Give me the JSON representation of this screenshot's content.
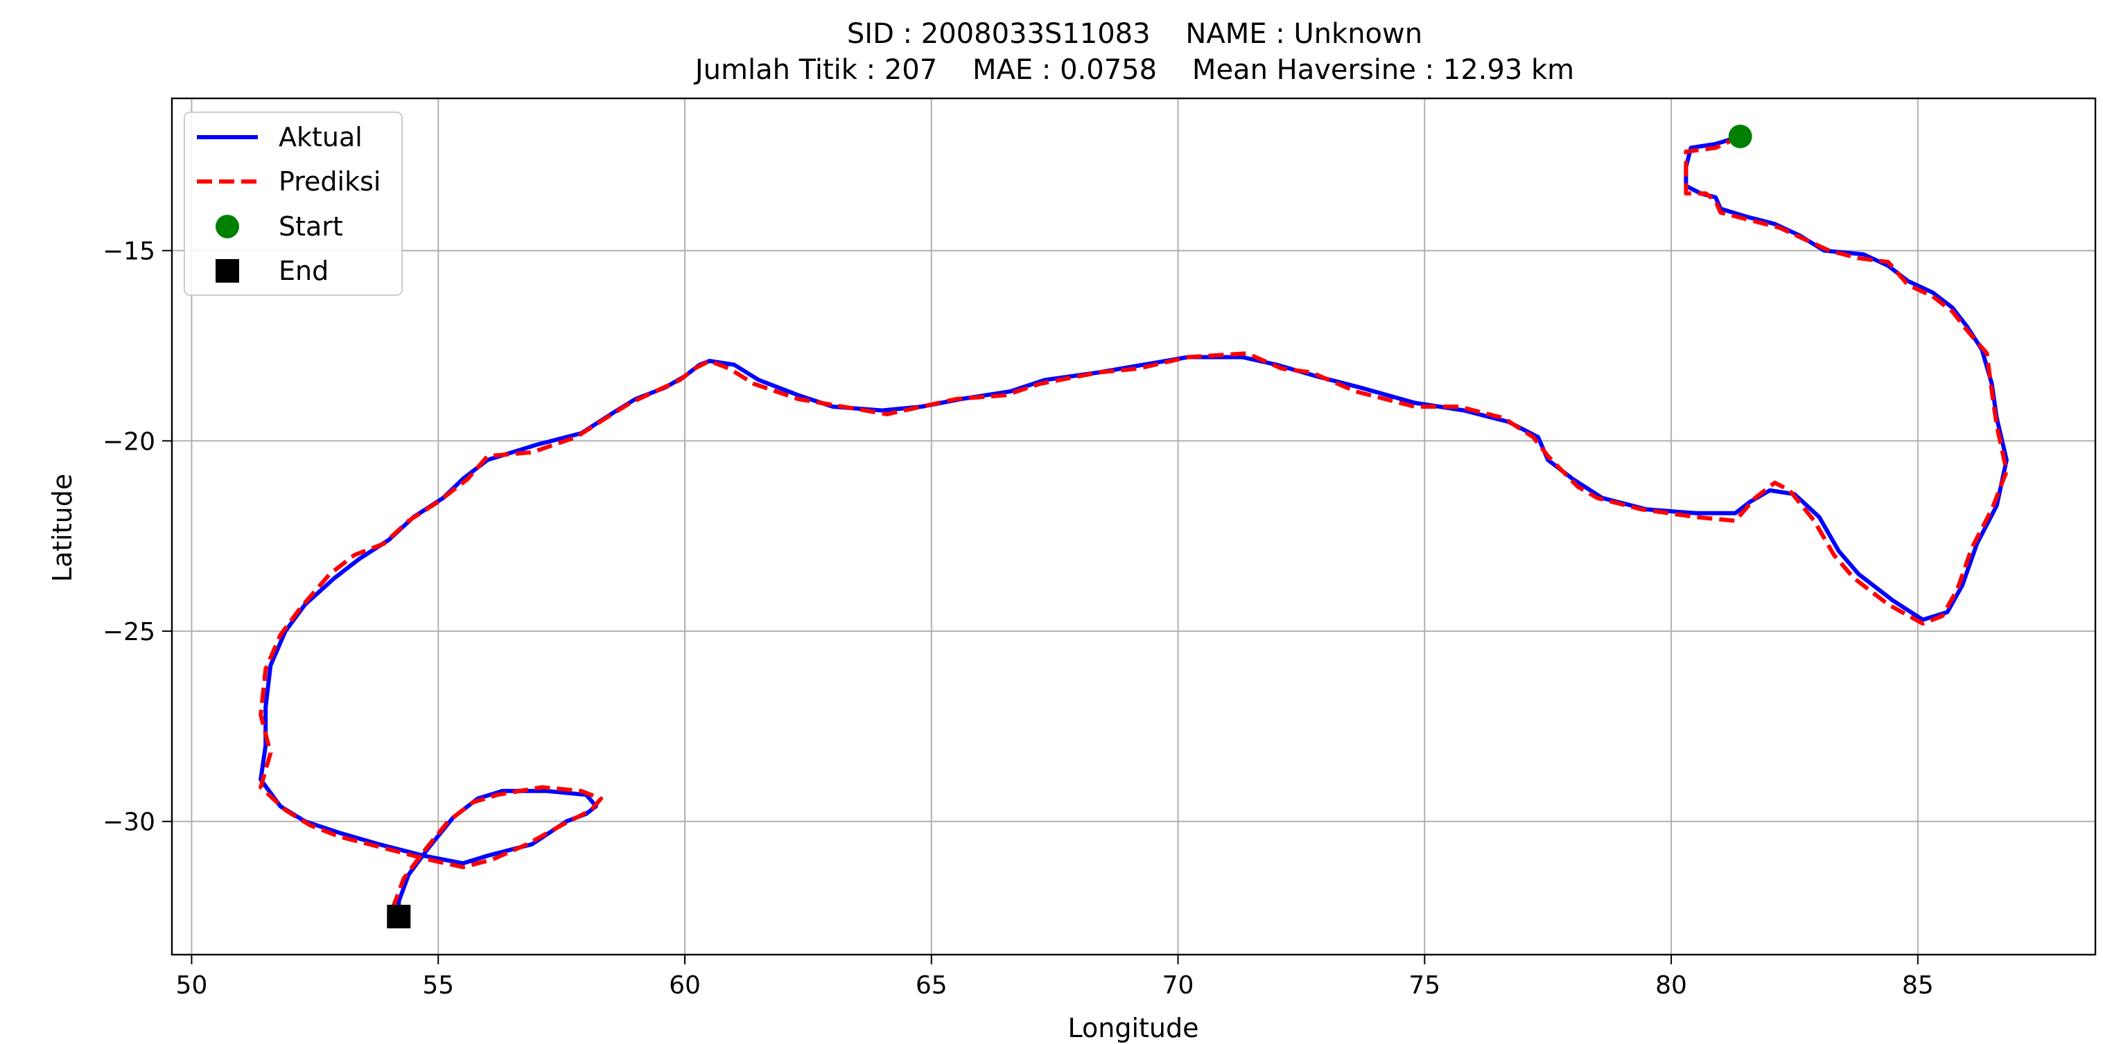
{
  "chart_data": {
    "type": "line",
    "title_line1": "SID : 2008033S11083    NAME : Unknown",
    "title_line2": "Jumlah Titik : 207    MAE : 0.0758    Mean Haversine : 12.93 km",
    "xlabel": "Longitude",
    "ylabel": "Latitude",
    "xlim": [
      49.6,
      88.6
    ],
    "ylim": [
      -33.5,
      -11.0
    ],
    "xticks": [
      50,
      55,
      60,
      65,
      70,
      75,
      80,
      85
    ],
    "yticks": [
      -15,
      -20,
      -25,
      -30
    ],
    "xtick_labels": [
      "50",
      "55",
      "60",
      "65",
      "70",
      "75",
      "80",
      "85"
    ],
    "ytick_labels": [
      "−15",
      "−20",
      "−25",
      "−30"
    ],
    "grid": true,
    "legend_position": "top-left",
    "legend": [
      {
        "label": "Aktual",
        "kind": "line",
        "color": "#0000ff"
      },
      {
        "label": "Prediksi",
        "kind": "dashed",
        "color": "#ff0000"
      },
      {
        "label": "Start",
        "kind": "circle",
        "color": "#008000"
      },
      {
        "label": "End",
        "kind": "square",
        "color": "#000000"
      }
    ],
    "series": [
      {
        "name": "Aktual",
        "color": "#0000ff",
        "style": "solid",
        "points": [
          [
            81.4,
            -12.0
          ],
          [
            80.9,
            -12.2
          ],
          [
            80.4,
            -12.3
          ],
          [
            80.3,
            -12.8
          ],
          [
            80.3,
            -13.3
          ],
          [
            80.6,
            -13.5
          ],
          [
            80.9,
            -13.6
          ],
          [
            81.0,
            -13.9
          ],
          [
            81.5,
            -14.1
          ],
          [
            82.1,
            -14.3
          ],
          [
            82.6,
            -14.6
          ],
          [
            83.1,
            -15.0
          ],
          [
            83.9,
            -15.1
          ],
          [
            84.4,
            -15.4
          ],
          [
            84.8,
            -15.8
          ],
          [
            85.3,
            -16.1
          ],
          [
            85.7,
            -16.5
          ],
          [
            86.0,
            -17.0
          ],
          [
            86.3,
            -17.6
          ],
          [
            86.5,
            -18.5
          ],
          [
            86.6,
            -19.4
          ],
          [
            86.8,
            -20.5
          ],
          [
            86.6,
            -21.7
          ],
          [
            86.2,
            -22.7
          ],
          [
            85.9,
            -23.8
          ],
          [
            85.6,
            -24.5
          ],
          [
            85.1,
            -24.7
          ],
          [
            84.5,
            -24.2
          ],
          [
            83.8,
            -23.5
          ],
          [
            83.4,
            -22.9
          ],
          [
            83.0,
            -22.0
          ],
          [
            82.5,
            -21.4
          ],
          [
            82.0,
            -21.3
          ],
          [
            81.6,
            -21.6
          ],
          [
            81.3,
            -21.9
          ],
          [
            80.5,
            -21.9
          ],
          [
            79.5,
            -21.8
          ],
          [
            78.6,
            -21.5
          ],
          [
            78.0,
            -21.0
          ],
          [
            77.5,
            -20.5
          ],
          [
            77.3,
            -19.9
          ],
          [
            76.7,
            -19.5
          ],
          [
            75.8,
            -19.2
          ],
          [
            74.8,
            -19.0
          ],
          [
            73.7,
            -18.6
          ],
          [
            72.8,
            -18.3
          ],
          [
            72.0,
            -18.0
          ],
          [
            71.3,
            -17.8
          ],
          [
            70.2,
            -17.8
          ],
          [
            69.3,
            -18.0
          ],
          [
            68.4,
            -18.2
          ],
          [
            67.3,
            -18.4
          ],
          [
            66.6,
            -18.7
          ],
          [
            65.6,
            -18.9
          ],
          [
            64.8,
            -19.1
          ],
          [
            64.0,
            -19.2
          ],
          [
            63.0,
            -19.1
          ],
          [
            62.3,
            -18.8
          ],
          [
            61.5,
            -18.4
          ],
          [
            61.0,
            -18.0
          ],
          [
            60.5,
            -17.9
          ],
          [
            60.3,
            -18.0
          ],
          [
            60.0,
            -18.3
          ],
          [
            59.6,
            -18.6
          ],
          [
            59.0,
            -18.9
          ],
          [
            58.5,
            -19.3
          ],
          [
            57.9,
            -19.8
          ],
          [
            57.0,
            -20.1
          ],
          [
            56.0,
            -20.5
          ],
          [
            55.5,
            -21.0
          ],
          [
            55.1,
            -21.5
          ],
          [
            54.5,
            -22.0
          ],
          [
            54.0,
            -22.6
          ],
          [
            53.4,
            -23.1
          ],
          [
            52.9,
            -23.6
          ],
          [
            52.3,
            -24.3
          ],
          [
            51.9,
            -25.0
          ],
          [
            51.6,
            -25.9
          ],
          [
            51.5,
            -27.0
          ],
          [
            51.5,
            -28.0
          ],
          [
            51.4,
            -28.9
          ],
          [
            51.8,
            -29.6
          ],
          [
            52.3,
            -30.0
          ],
          [
            53.0,
            -30.3
          ],
          [
            53.8,
            -30.6
          ],
          [
            54.7,
            -30.9
          ],
          [
            55.5,
            -31.1
          ],
          [
            56.0,
            -30.9
          ],
          [
            56.9,
            -30.6
          ],
          [
            57.6,
            -30.0
          ],
          [
            58.0,
            -29.8
          ],
          [
            58.2,
            -29.6
          ],
          [
            58.0,
            -29.3
          ],
          [
            57.2,
            -29.2
          ],
          [
            56.3,
            -29.2
          ],
          [
            55.8,
            -29.4
          ],
          [
            55.3,
            -29.9
          ],
          [
            54.8,
            -30.7
          ],
          [
            54.4,
            -31.4
          ],
          [
            54.2,
            -32.1
          ],
          [
            54.2,
            -32.5
          ]
        ]
      },
      {
        "name": "Prediksi",
        "color": "#ff0000",
        "style": "dashed",
        "points": [
          [
            81.4,
            -12.0
          ],
          [
            80.9,
            -12.3
          ],
          [
            80.3,
            -12.4
          ],
          [
            80.3,
            -12.9
          ],
          [
            80.3,
            -13.5
          ],
          [
            80.7,
            -13.5
          ],
          [
            80.9,
            -13.7
          ],
          [
            81.0,
            -14.0
          ],
          [
            81.6,
            -14.2
          ],
          [
            82.2,
            -14.4
          ],
          [
            82.7,
            -14.7
          ],
          [
            83.2,
            -15.0
          ],
          [
            83.8,
            -15.2
          ],
          [
            84.4,
            -15.3
          ],
          [
            84.8,
            -15.9
          ],
          [
            85.3,
            -16.2
          ],
          [
            85.7,
            -16.6
          ],
          [
            86.0,
            -17.1
          ],
          [
            86.4,
            -17.7
          ],
          [
            86.5,
            -18.7
          ],
          [
            86.6,
            -19.6
          ],
          [
            86.8,
            -20.8
          ],
          [
            86.5,
            -21.8
          ],
          [
            86.1,
            -22.8
          ],
          [
            85.8,
            -23.9
          ],
          [
            85.5,
            -24.6
          ],
          [
            85.1,
            -24.8
          ],
          [
            84.4,
            -24.3
          ],
          [
            83.7,
            -23.6
          ],
          [
            83.3,
            -23.0
          ],
          [
            82.9,
            -22.1
          ],
          [
            82.4,
            -21.3
          ],
          [
            82.1,
            -21.1
          ],
          [
            81.7,
            -21.5
          ],
          [
            81.3,
            -22.1
          ],
          [
            80.5,
            -22.0
          ],
          [
            79.4,
            -21.8
          ],
          [
            78.5,
            -21.5
          ],
          [
            78.1,
            -21.2
          ],
          [
            77.5,
            -20.4
          ],
          [
            77.2,
            -19.9
          ],
          [
            76.6,
            -19.4
          ],
          [
            75.7,
            -19.1
          ],
          [
            74.8,
            -19.1
          ],
          [
            73.6,
            -18.7
          ],
          [
            72.7,
            -18.2
          ],
          [
            72.1,
            -18.1
          ],
          [
            71.4,
            -17.7
          ],
          [
            70.2,
            -17.8
          ],
          [
            69.2,
            -18.1
          ],
          [
            68.4,
            -18.2
          ],
          [
            67.2,
            -18.5
          ],
          [
            66.5,
            -18.8
          ],
          [
            65.5,
            -18.9
          ],
          [
            64.8,
            -19.1
          ],
          [
            64.1,
            -19.3
          ],
          [
            63.2,
            -19.1
          ],
          [
            62.3,
            -18.9
          ],
          [
            61.4,
            -18.5
          ],
          [
            60.9,
            -18.1
          ],
          [
            60.5,
            -17.9
          ],
          [
            60.2,
            -18.1
          ],
          [
            59.9,
            -18.4
          ],
          [
            59.4,
            -18.7
          ],
          [
            58.9,
            -19.0
          ],
          [
            58.4,
            -19.4
          ],
          [
            57.8,
            -19.9
          ],
          [
            56.9,
            -20.3
          ],
          [
            56.0,
            -20.4
          ],
          [
            55.6,
            -21.0
          ],
          [
            55.0,
            -21.6
          ],
          [
            54.4,
            -22.1
          ],
          [
            53.9,
            -22.7
          ],
          [
            53.3,
            -23.0
          ],
          [
            52.8,
            -23.5
          ],
          [
            52.2,
            -24.4
          ],
          [
            51.8,
            -25.1
          ],
          [
            51.5,
            -26.0
          ],
          [
            51.4,
            -27.2
          ],
          [
            51.6,
            -28.2
          ],
          [
            51.4,
            -29.1
          ],
          [
            51.9,
            -29.7
          ],
          [
            52.4,
            -30.1
          ],
          [
            53.0,
            -30.4
          ],
          [
            53.9,
            -30.7
          ],
          [
            54.8,
            -31.0
          ],
          [
            55.5,
            -31.2
          ],
          [
            56.1,
            -31.0
          ],
          [
            56.8,
            -30.6
          ],
          [
            57.5,
            -30.1
          ],
          [
            58.1,
            -29.7
          ],
          [
            58.3,
            -29.4
          ],
          [
            57.9,
            -29.2
          ],
          [
            57.1,
            -29.1
          ],
          [
            56.2,
            -29.3
          ],
          [
            55.7,
            -29.5
          ],
          [
            55.2,
            -30.0
          ],
          [
            54.7,
            -30.8
          ],
          [
            54.3,
            -31.5
          ],
          [
            54.1,
            -32.2
          ],
          [
            54.2,
            -32.5
          ]
        ]
      }
    ],
    "start": {
      "label": "Start",
      "lon": 81.4,
      "lat": -12.0,
      "color": "#008000"
    },
    "end": {
      "label": "End",
      "lon": 54.2,
      "lat": -32.5,
      "color": "#000000"
    }
  }
}
